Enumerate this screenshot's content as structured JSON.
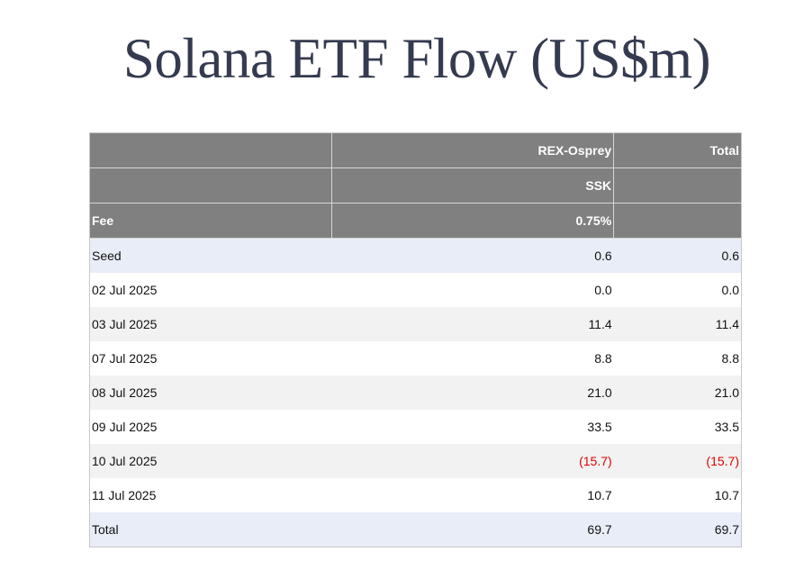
{
  "title": "Solana ETF Flow (US$m)",
  "table": {
    "header_rows": [
      [
        "",
        "REX-Osprey",
        "Total"
      ],
      [
        "",
        "SSK",
        ""
      ],
      [
        "Fee",
        "0.75%",
        ""
      ]
    ],
    "rows": [
      {
        "label": "Seed",
        "ssk": "0.6",
        "total": "0.6"
      },
      {
        "label": "02 Jul 2025",
        "ssk": "0.0",
        "total": "0.0"
      },
      {
        "label": "03 Jul 2025",
        "ssk": "11.4",
        "total": "11.4"
      },
      {
        "label": "07 Jul 2025",
        "ssk": "8.8",
        "total": "8.8"
      },
      {
        "label": "08 Jul 2025",
        "ssk": "21.0",
        "total": "21.0"
      },
      {
        "label": "09 Jul 2025",
        "ssk": "33.5",
        "total": "33.5"
      },
      {
        "label": "10 Jul 2025",
        "ssk": "(15.7)",
        "total": "(15.7)"
      },
      {
        "label": "11 Jul 2025",
        "ssk": "10.7",
        "total": "10.7"
      },
      {
        "label": "Total",
        "ssk": "69.7",
        "total": "69.7"
      }
    ]
  },
  "colors": {
    "header_bg": "#808080",
    "negative": "#e00000",
    "stripe_blue": "#e9edf8",
    "stripe_gray": "#f2f2f2"
  }
}
